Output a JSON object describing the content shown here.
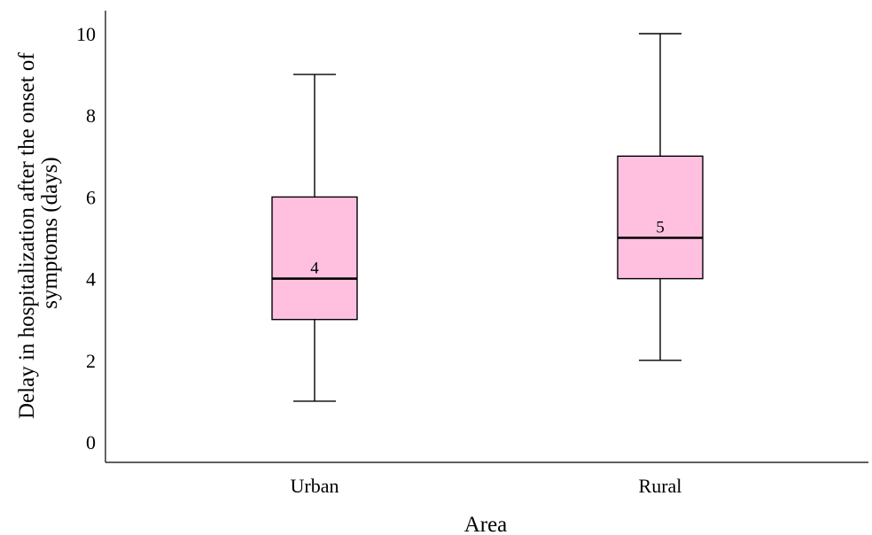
{
  "chart_data": {
    "type": "boxplot",
    "xlabel": "Area",
    "ylabel_lines": [
      "Delay in hospitalization after the onset of",
      "symptoms (days)"
    ],
    "categories": [
      "Urban",
      "Rural"
    ],
    "boxes": [
      {
        "category": "Urban",
        "min": 1,
        "q1": 3,
        "median": 4,
        "q3": 6,
        "max": 9,
        "median_label": "4"
      },
      {
        "category": "Rural",
        "min": 2,
        "q1": 4,
        "median": 5,
        "q3": 7,
        "max": 10,
        "median_label": "5"
      }
    ],
    "yticks": [
      0,
      2,
      4,
      6,
      8,
      10
    ],
    "ylim": [
      -0.5,
      10.5
    ],
    "box_color": "#ffc0e0",
    "grid": false,
    "legend": "none"
  }
}
